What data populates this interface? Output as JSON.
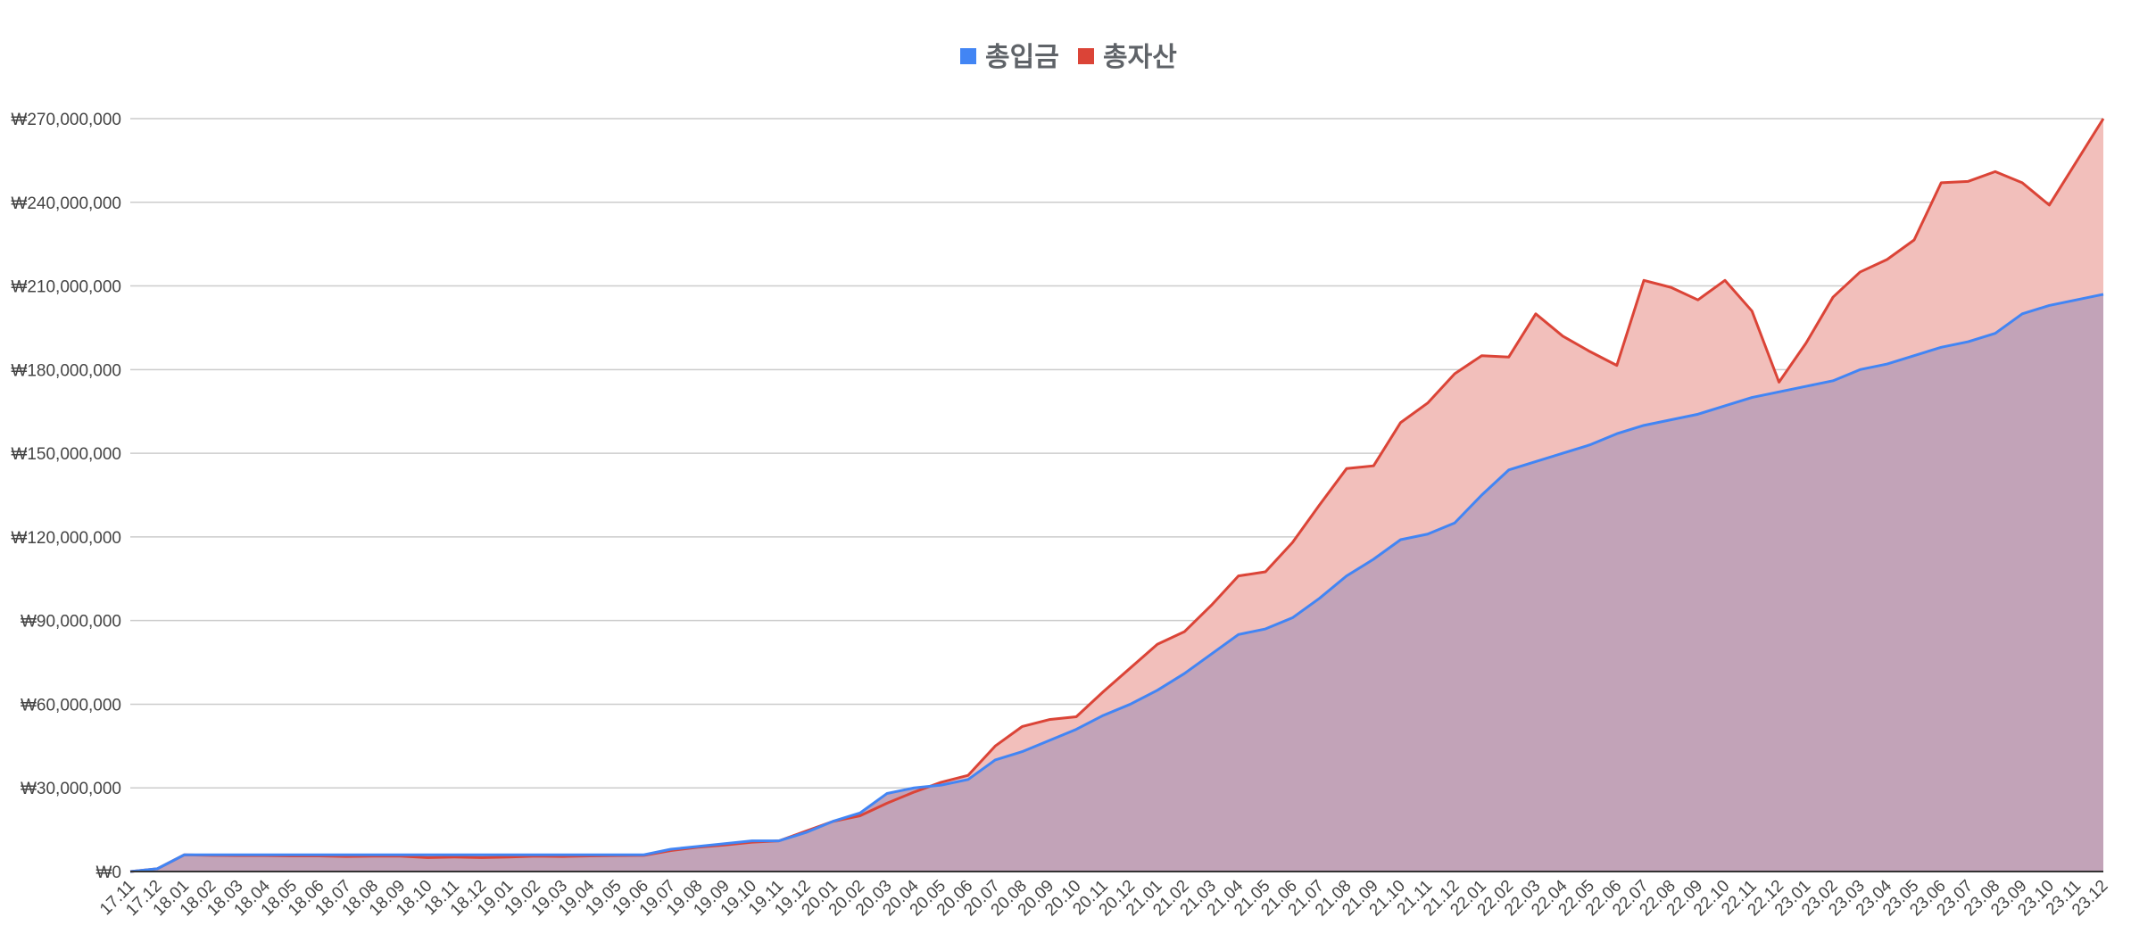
{
  "chart_data": {
    "type": "area",
    "legend_position": "top",
    "grid": true,
    "x": [
      "17.11",
      "17.12",
      "18.01",
      "18.02",
      "18.03",
      "18.04",
      "18.05",
      "18.06",
      "18.07",
      "18.08",
      "18.09",
      "18.10",
      "18.11",
      "18.12",
      "19.01",
      "19.02",
      "19.03",
      "19.04",
      "19.05",
      "19.06",
      "19.07",
      "19.08",
      "19.09",
      "19.10",
      "19.11",
      "19.12",
      "20.01",
      "20.02",
      "20.03",
      "20.04",
      "20.05",
      "20.06",
      "20.07",
      "20.08",
      "20.09",
      "20.10",
      "20.11",
      "20.12",
      "21.01",
      "21.02",
      "21.03",
      "21.04",
      "21.05",
      "21.06",
      "21.07",
      "21.08",
      "21.09",
      "21.10",
      "21.11",
      "21.12",
      "22.01",
      "22.02",
      "22.03",
      "22.04",
      "22.05",
      "22.06",
      "22.07",
      "22.08",
      "22.09",
      "22.10",
      "22.11",
      "22.12",
      "23.01",
      "23.02",
      "23.03",
      "23.04",
      "23.05",
      "23.06",
      "23.07",
      "23.08",
      "23.09",
      "23.10",
      "23.11",
      "23.12"
    ],
    "y_ticks": [
      "₩0",
      "₩30,000,000",
      "₩60,000,000",
      "₩90,000,000",
      "₩120,000,000",
      "₩150,000,000",
      "₩180,000,000",
      "₩210,000,000",
      "₩240,000,000",
      "₩270,000,000"
    ],
    "y_tick_values": [
      0,
      30000000,
      60000000,
      90000000,
      120000000,
      150000000,
      180000000,
      210000000,
      240000000,
      270000000
    ],
    "ylim": [
      0,
      270000000
    ],
    "series": [
      {
        "name": "총입금",
        "color": "#4285f4",
        "fill": "#c2a3b8",
        "values": [
          0,
          1000000,
          6000000,
          6000000,
          6000000,
          6000000,
          6000000,
          6000000,
          6000000,
          6000000,
          6000000,
          6000000,
          6000000,
          6000000,
          6000000,
          6000000,
          6000000,
          6000000,
          6000000,
          6000000,
          8000000,
          9000000,
          10000000,
          11000000,
          11000000,
          14000000,
          18000000,
          21000000,
          28000000,
          30000000,
          31000000,
          33000000,
          40000000,
          43000000,
          47000000,
          51000000,
          56000000,
          60000000,
          65000000,
          71000000,
          78000000,
          85000000,
          87000000,
          91000000,
          98000000,
          106000000,
          112000000,
          119000000,
          121000000,
          125000000,
          135000000,
          144000000,
          147000000,
          150000000,
          153000000,
          157000000,
          160000000,
          162000000,
          164000000,
          167000000,
          170000000,
          172000000,
          174000000,
          176000000,
          180000000,
          182000000,
          185000000,
          188000000,
          190000000,
          193000000,
          200000000,
          203000000,
          205000000,
          207000000
        ]
      },
      {
        "name": "총자산",
        "color": "#db4437",
        "fill": "#f2bfbb",
        "values": [
          0,
          1000000,
          6000000,
          5800000,
          5700000,
          5700000,
          5600000,
          5600000,
          5400000,
          5500000,
          5500000,
          5000000,
          5200000,
          5000000,
          5200000,
          5500000,
          5400000,
          5600000,
          5700000,
          5800000,
          7500000,
          8700000,
          9500000,
          10500000,
          11000000,
          14500000,
          18000000,
          20000000,
          24500000,
          28500000,
          32000000,
          34500000,
          45000000,
          52000000,
          54500000,
          55500000,
          64500000,
          73000000,
          81500000,
          86000000,
          95500000,
          106000000,
          107500000,
          118000000,
          131500000,
          144500000,
          145500000,
          161000000,
          168000000,
          178500000,
          185000000,
          184500000,
          200000000,
          192000000,
          186500000,
          181500000,
          212000000,
          209500000,
          205000000,
          212000000,
          201000000,
          175500000,
          189500000,
          206000000,
          215000000,
          219500000,
          226500000,
          247000000,
          247500000,
          251000000,
          247000000,
          239000000,
          254500000,
          270000000
        ]
      }
    ]
  }
}
